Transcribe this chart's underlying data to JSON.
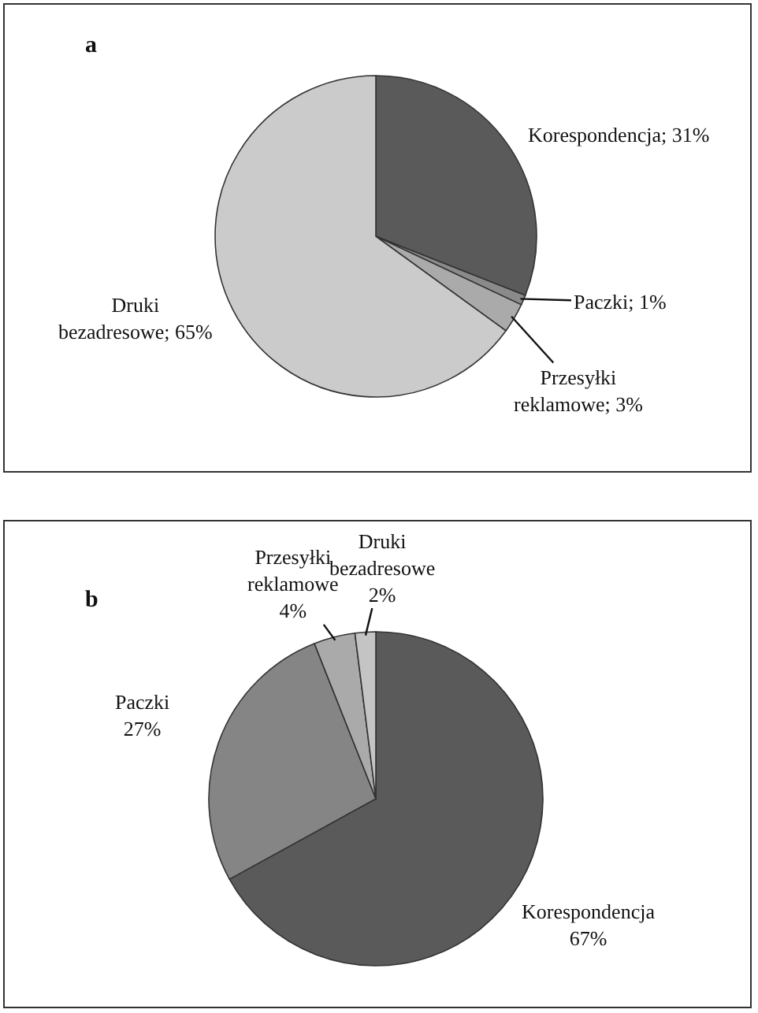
{
  "chart_data": [
    {
      "type": "pie",
      "title": "a",
      "categories": [
        "Korespondencja",
        "Paczki",
        "Przesyłki reklamowe",
        "Druki bezadresowe"
      ],
      "values": [
        31,
        1,
        3,
        65
      ],
      "colors": [
        "#5a5a5a",
        "#8a8a8a",
        "#aaaaaa",
        "#cbcbcb"
      ],
      "value_labels": [
        "31%",
        "1%",
        "3%",
        "65%"
      ],
      "legend": false
    },
    {
      "type": "pie",
      "title": "b",
      "categories": [
        "Korespondencja",
        "Paczki",
        "Przesyłki reklamowe",
        "Druki bezadresowe"
      ],
      "values": [
        67,
        27,
        4,
        2
      ],
      "colors": [
        "#5a5a5a",
        "#858585",
        "#aaaaaa",
        "#c4c4c4"
      ],
      "value_labels": [
        "67%",
        "27%",
        "4%",
        "2%"
      ],
      "legend": false
    }
  ]
}
